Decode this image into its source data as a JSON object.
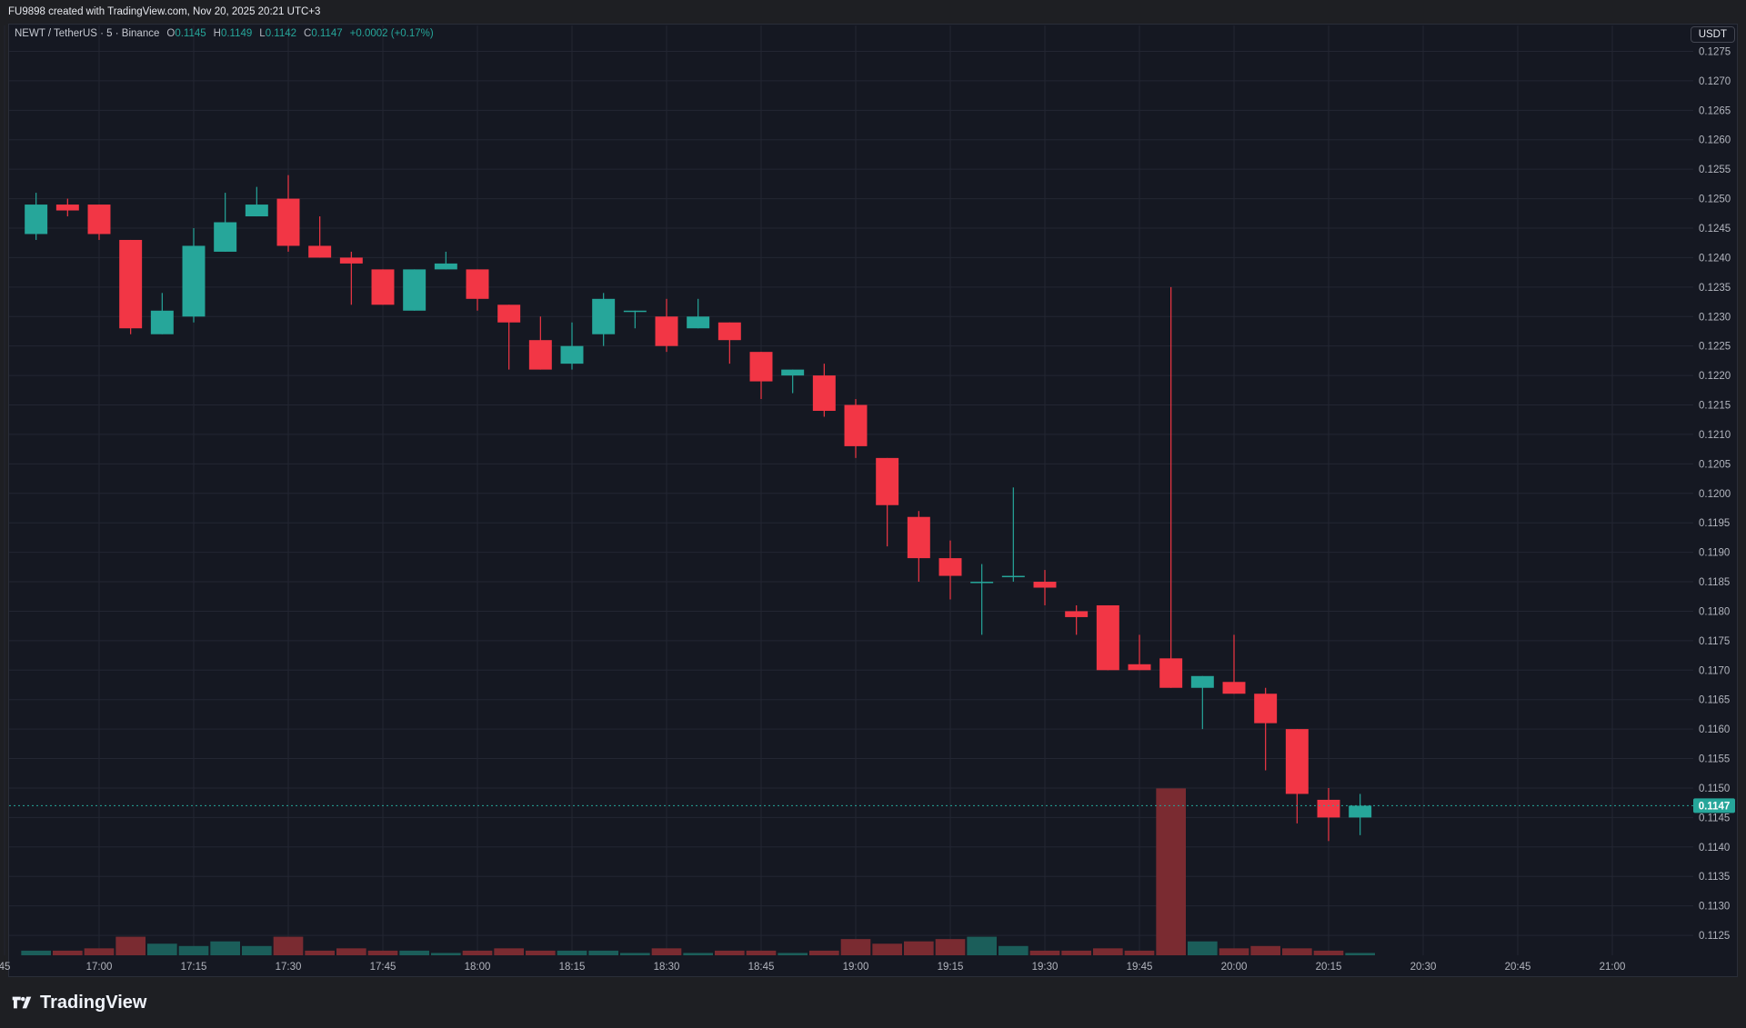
{
  "header": {
    "attribution": "FU9898 created with TradingView.com, Nov 20, 2025 20:21 UTC+3"
  },
  "legend": {
    "symbol": "NEWT / TetherUS · 5 · Binance",
    "o_label": "O",
    "o_value": "0.1145",
    "h_label": "H",
    "h_value": "0.1149",
    "l_label": "L",
    "l_value": "0.1142",
    "c_label": "C",
    "c_value": "0.1147",
    "change": "+0.0002 (+0.17%)"
  },
  "currency_badge": "USDT",
  "footer": {
    "brand": "TradingView",
    "logo_icon": "tradingview-logo-icon"
  },
  "colors": {
    "up": "#26a69a",
    "down": "#f23645",
    "up_volume": "#1b5e5a",
    "down_volume": "#7a2b31",
    "grid": "#232632",
    "price_line": "#26a69a"
  },
  "chart_data": {
    "type": "candlestick",
    "title": "NEWT / TetherUS · 5 · Binance",
    "interval": "5 minutes",
    "y_range": [
      0.1121,
      0.1276
    ],
    "y_ticks": [
      "0.1275",
      "0.1270",
      "0.1265",
      "0.1260",
      "0.1255",
      "0.1250",
      "0.1245",
      "0.1240",
      "0.1235",
      "0.1230",
      "0.1225",
      "0.1220",
      "0.1215",
      "0.1210",
      "0.1205",
      "0.1200",
      "0.1195",
      "0.1190",
      "0.1185",
      "0.1180",
      "0.1175",
      "0.1170",
      "0.1165",
      "0.1160",
      "0.1155",
      "0.1150",
      "0.1145",
      "0.1140",
      "0.1135",
      "0.1130",
      "0.1125"
    ],
    "x_ticks": [
      "45",
      "17:00",
      "17:15",
      "17:30",
      "17:45",
      "18:00",
      "18:15",
      "18:30",
      "18:45",
      "19:00",
      "19:15",
      "19:30",
      "19:45",
      "20:00",
      "20:15",
      "20:30",
      "20:45",
      "21:00"
    ],
    "x_range": [
      "16:45",
      "21:10"
    ],
    "last_price": "0.1147",
    "grid": true,
    "volume_max": 1.0,
    "candles": [
      {
        "t": "16:50",
        "o": 0.1244,
        "h": 0.1251,
        "l": 0.1243,
        "c": 0.1249,
        "v": 0.02
      },
      {
        "t": "16:55",
        "o": 0.1249,
        "h": 0.125,
        "l": 0.1247,
        "c": 0.1248,
        "v": 0.02
      },
      {
        "t": "17:00",
        "o": 0.1249,
        "h": 0.1249,
        "l": 0.1243,
        "c": 0.1244,
        "v": 0.03
      },
      {
        "t": "17:05",
        "o": 0.1243,
        "h": 0.1243,
        "l": 0.1227,
        "c": 0.1228,
        "v": 0.08
      },
      {
        "t": "17:10",
        "o": 0.1227,
        "h": 0.1234,
        "l": 0.1227,
        "c": 0.1231,
        "v": 0.05
      },
      {
        "t": "17:15",
        "o": 0.123,
        "h": 0.1245,
        "l": 0.1229,
        "c": 0.1242,
        "v": 0.04
      },
      {
        "t": "17:20",
        "o": 0.1241,
        "h": 0.1251,
        "l": 0.1241,
        "c": 0.1246,
        "v": 0.06
      },
      {
        "t": "17:25",
        "o": 0.1247,
        "h": 0.1252,
        "l": 0.1247,
        "c": 0.1249,
        "v": 0.04
      },
      {
        "t": "17:30",
        "o": 0.125,
        "h": 0.1254,
        "l": 0.1241,
        "c": 0.1242,
        "v": 0.08
      },
      {
        "t": "17:35",
        "o": 0.1242,
        "h": 0.1247,
        "l": 0.124,
        "c": 0.124,
        "v": 0.02
      },
      {
        "t": "17:40",
        "o": 0.124,
        "h": 0.1241,
        "l": 0.1232,
        "c": 0.1239,
        "v": 0.03
      },
      {
        "t": "17:45",
        "o": 0.1238,
        "h": 0.1238,
        "l": 0.1232,
        "c": 0.1232,
        "v": 0.02
      },
      {
        "t": "17:50",
        "o": 0.1231,
        "h": 0.1238,
        "l": 0.1231,
        "c": 0.1238,
        "v": 0.02
      },
      {
        "t": "17:55",
        "o": 0.1238,
        "h": 0.1241,
        "l": 0.1238,
        "c": 0.1239,
        "v": 0.01
      },
      {
        "t": "18:00",
        "o": 0.1238,
        "h": 0.1238,
        "l": 0.1231,
        "c": 0.1233,
        "v": 0.02
      },
      {
        "t": "18:05",
        "o": 0.1232,
        "h": 0.1232,
        "l": 0.1221,
        "c": 0.1229,
        "v": 0.03
      },
      {
        "t": "18:10",
        "o": 0.1226,
        "h": 0.123,
        "l": 0.1221,
        "c": 0.1221,
        "v": 0.02
      },
      {
        "t": "18:15",
        "o": 0.1222,
        "h": 0.1229,
        "l": 0.1221,
        "c": 0.1225,
        "v": 0.02
      },
      {
        "t": "18:20",
        "o": 0.1227,
        "h": 0.1234,
        "l": 0.1225,
        "c": 0.1233,
        "v": 0.02
      },
      {
        "t": "18:25",
        "o": 0.1231,
        "h": 0.1231,
        "l": 0.1228,
        "c": 0.1231,
        "v": 0.01
      },
      {
        "t": "18:30",
        "o": 0.123,
        "h": 0.1233,
        "l": 0.1224,
        "c": 0.1225,
        "v": 0.03
      },
      {
        "t": "18:35",
        "o": 0.1228,
        "h": 0.1233,
        "l": 0.1228,
        "c": 0.123,
        "v": 0.01
      },
      {
        "t": "18:40",
        "o": 0.1229,
        "h": 0.1229,
        "l": 0.1222,
        "c": 0.1226,
        "v": 0.02
      },
      {
        "t": "18:45",
        "o": 0.1224,
        "h": 0.1224,
        "l": 0.1216,
        "c": 0.1219,
        "v": 0.02
      },
      {
        "t": "18:50",
        "o": 0.122,
        "h": 0.1221,
        "l": 0.1217,
        "c": 0.1221,
        "v": 0.01
      },
      {
        "t": "18:55",
        "o": 0.122,
        "h": 0.1222,
        "l": 0.1213,
        "c": 0.1214,
        "v": 0.02
      },
      {
        "t": "19:00",
        "o": 0.1215,
        "h": 0.1216,
        "l": 0.1206,
        "c": 0.1208,
        "v": 0.07
      },
      {
        "t": "19:05",
        "o": 0.1206,
        "h": 0.1206,
        "l": 0.1191,
        "c": 0.1198,
        "v": 0.05
      },
      {
        "t": "19:10",
        "o": 0.1196,
        "h": 0.1197,
        "l": 0.1185,
        "c": 0.1189,
        "v": 0.06
      },
      {
        "t": "19:15",
        "o": 0.1189,
        "h": 0.1192,
        "l": 0.1182,
        "c": 0.1186,
        "v": 0.07
      },
      {
        "t": "19:20",
        "o": 0.1185,
        "h": 0.1188,
        "l": 0.1176,
        "c": 0.1185,
        "v": 0.08
      },
      {
        "t": "19:25",
        "o": 0.1186,
        "h": 0.1201,
        "l": 0.1185,
        "c": 0.1186,
        "v": 0.04
      },
      {
        "t": "19:30",
        "o": 0.1185,
        "h": 0.1187,
        "l": 0.1181,
        "c": 0.1184,
        "v": 0.02
      },
      {
        "t": "19:35",
        "o": 0.118,
        "h": 0.1181,
        "l": 0.1176,
        "c": 0.1179,
        "v": 0.02
      },
      {
        "t": "19:40",
        "o": 0.1181,
        "h": 0.1181,
        "l": 0.117,
        "c": 0.117,
        "v": 0.03
      },
      {
        "t": "19:45",
        "o": 0.1171,
        "h": 0.1176,
        "l": 0.117,
        "c": 0.117,
        "v": 0.02
      },
      {
        "t": "19:50",
        "o": 0.1172,
        "h": 0.1235,
        "l": 0.1167,
        "c": 0.1167,
        "v": 0.72
      },
      {
        "t": "19:55",
        "o": 0.1167,
        "h": 0.1169,
        "l": 0.116,
        "c": 0.1169,
        "v": 0.06
      },
      {
        "t": "20:00",
        "o": 0.1168,
        "h": 0.1176,
        "l": 0.1166,
        "c": 0.1166,
        "v": 0.03
      },
      {
        "t": "20:05",
        "o": 0.1166,
        "h": 0.1167,
        "l": 0.1153,
        "c": 0.1161,
        "v": 0.04
      },
      {
        "t": "20:10",
        "o": 0.116,
        "h": 0.116,
        "l": 0.1144,
        "c": 0.1149,
        "v": 0.03
      },
      {
        "t": "20:15",
        "o": 0.1148,
        "h": 0.115,
        "l": 0.1141,
        "c": 0.1145,
        "v": 0.02
      },
      {
        "t": "20:20",
        "o": 0.1145,
        "h": 0.1149,
        "l": 0.1142,
        "c": 0.1147,
        "v": 0.01
      }
    ]
  }
}
